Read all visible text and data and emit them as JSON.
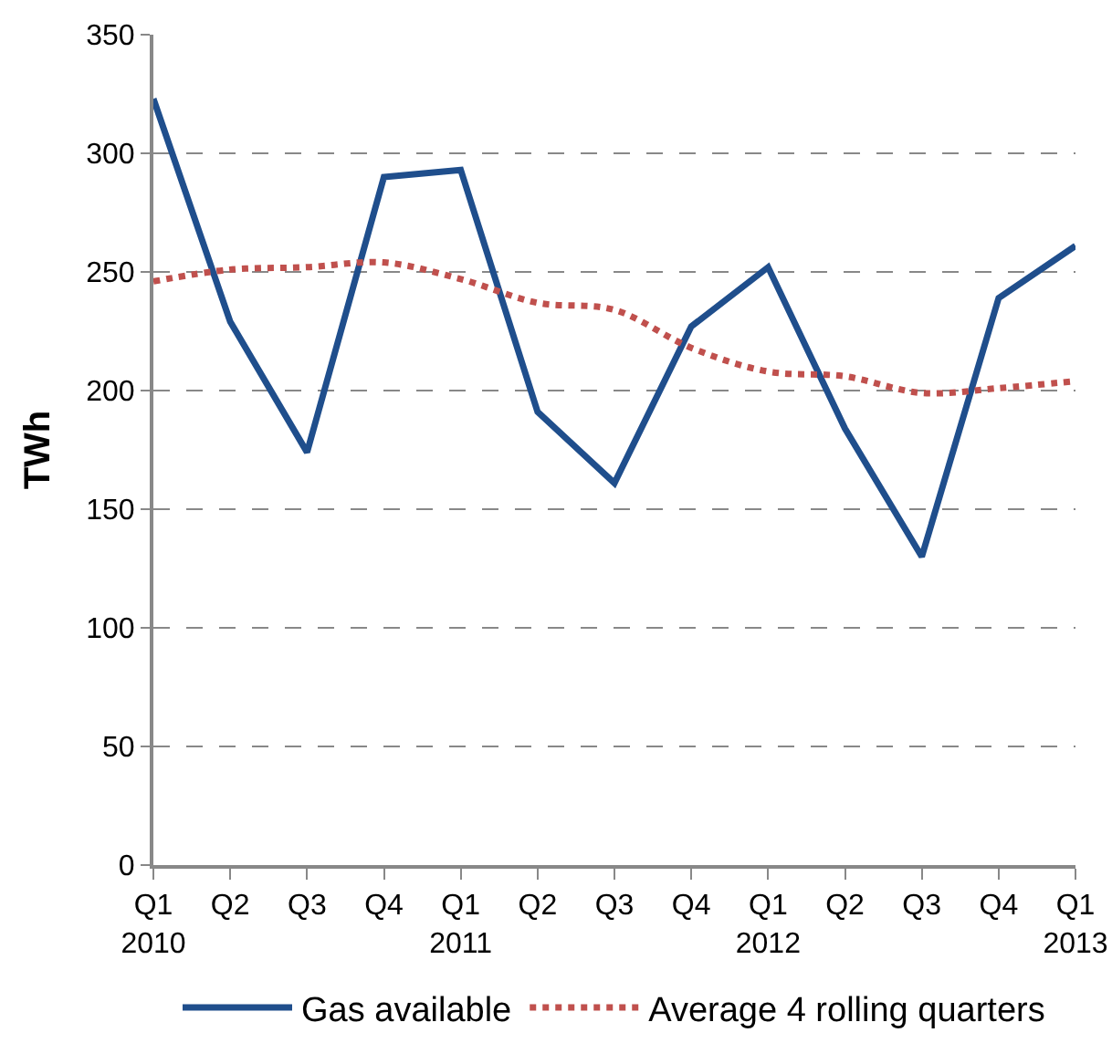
{
  "chart_data": {
    "type": "line",
    "ylabel": "TWh",
    "categories": [
      "Q1\n2010",
      "Q2",
      "Q3",
      "Q4",
      "Q1\n2011",
      "Q2",
      "Q3",
      "Q4",
      "Q1\n2012",
      "Q2",
      "Q3",
      "Q4",
      "Q1\n2013"
    ],
    "series": [
      {
        "name": "Gas available",
        "color": "#1f4e8c",
        "line_style": "solid",
        "values": [
          323,
          229,
          174,
          290,
          293,
          191,
          161,
          227,
          252,
          184,
          130,
          239,
          261
        ]
      },
      {
        "name": "Average 4 rolling quarters",
        "color": "#c0504d",
        "line_style": "dotted",
        "values": [
          246,
          251,
          252,
          254,
          247,
          237,
          234,
          218,
          208,
          206,
          199,
          201,
          204
        ]
      }
    ],
    "ylim": [
      0,
      350
    ],
    "yticks": [
      0,
      50,
      100,
      150,
      200,
      250,
      300,
      350
    ],
    "grid": "y",
    "legend": "bottom",
    "marker": "none"
  }
}
